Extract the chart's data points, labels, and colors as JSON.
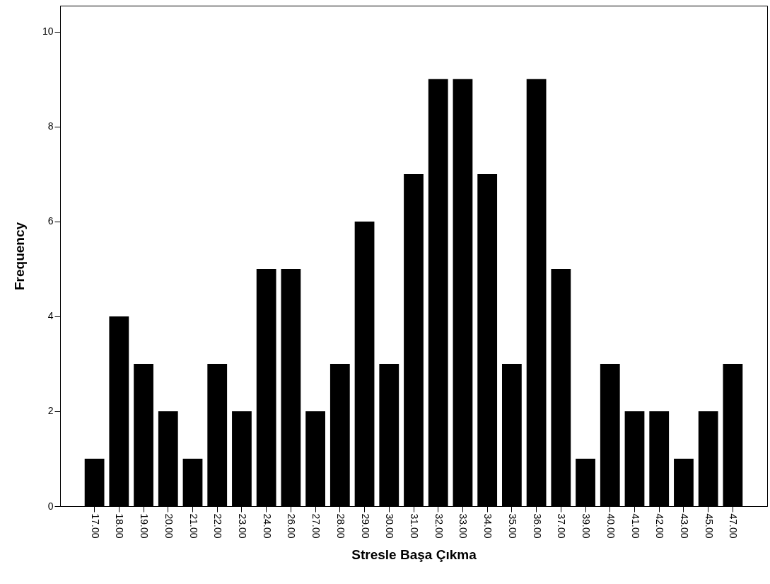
{
  "chart_data": {
    "type": "bar",
    "xlabel": "Stresle Başa Çıkma",
    "ylabel": "Frequency",
    "categories": [
      "17.00",
      "18.00",
      "19.00",
      "20.00",
      "21.00",
      "22.00",
      "23.00",
      "24.00",
      "26.00",
      "27.00",
      "28.00",
      "29.00",
      "30.00",
      "31.00",
      "32.00",
      "33.00",
      "34.00",
      "35.00",
      "36.00",
      "37.00",
      "39.00",
      "40.00",
      "41.00",
      "42.00",
      "43.00",
      "45.00",
      "47.00"
    ],
    "values": [
      1,
      4,
      3,
      2,
      1,
      3,
      2,
      5,
      5,
      2,
      3,
      6,
      3,
      7,
      9,
      9,
      7,
      3,
      9,
      5,
      1,
      3,
      2,
      2,
      1,
      2,
      3
    ],
    "color": "#000000",
    "ylim": [
      0,
      10.55
    ],
    "yticks": [
      0,
      2,
      4,
      6,
      8,
      10
    ],
    "grid": false
  }
}
